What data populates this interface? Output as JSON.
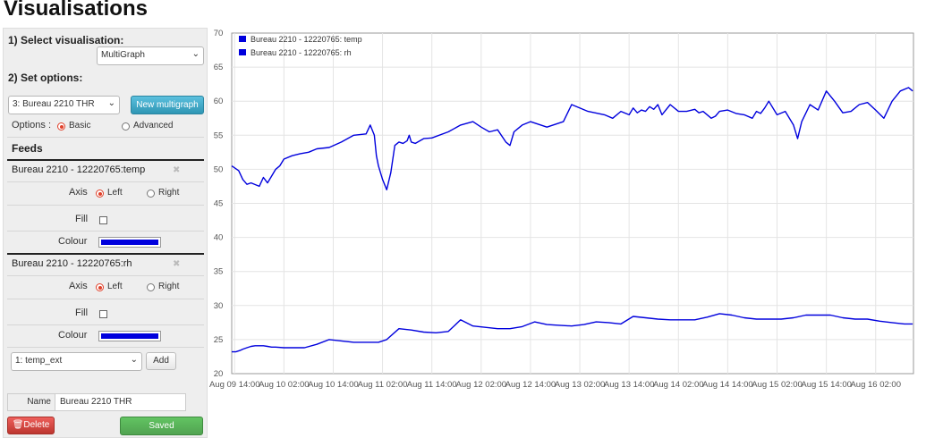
{
  "page": {
    "title": "Visualisations"
  },
  "sidebar": {
    "select_visualisation_label": "1) Select visualisation:",
    "visualisation_value": "MultiGraph",
    "set_options_label": "2) Set options:",
    "multigraph_value": "3: Bureau 2210 THR",
    "new_multigraph_label": "New multigraph",
    "options_label": "Options :",
    "options_basic_label": "Basic",
    "options_advanced_label": "Advanced",
    "options_selected": "Basic",
    "feeds_label": "Feeds",
    "feeds": [
      {
        "name": "Bureau 2210 - 12220765:temp",
        "axis_label": "Axis",
        "axis_left_label": "Left",
        "axis_right_label": "Right",
        "axis_selected": "Left",
        "fill_label": "Fill",
        "fill_checked": false,
        "colour_label": "Colour",
        "colour": "#0000dd"
      },
      {
        "name": "Bureau 2210 - 12220765:rh",
        "axis_label": "Axis",
        "axis_left_label": "Left",
        "axis_right_label": "Right",
        "axis_selected": "Left",
        "fill_label": "Fill",
        "fill_checked": false,
        "colour_label": "Colour",
        "colour": "#0000dd"
      }
    ],
    "add_feed_value": "1: temp_ext",
    "add_label": "Add",
    "name_label": "Name",
    "name_value": "Bureau 2210 THR",
    "delete_label": "Delete",
    "saved_label": "Saved"
  },
  "colors": {
    "series": "#0000dd",
    "delete": "#da4f49",
    "saved": "#5bb75b",
    "info": "#49afcd"
  },
  "chart_data": {
    "type": "line",
    "title": "",
    "xlabel": "",
    "ylabel": "",
    "ylim": [
      20,
      70
    ],
    "yticks": [
      20,
      25,
      30,
      35,
      40,
      45,
      50,
      55,
      60,
      65,
      70
    ],
    "x_ticks": [
      "Aug 09 14:00",
      "Aug 10 02:00",
      "Aug 10 14:00",
      "Aug 11 02:00",
      "Aug 11 14:00",
      "Aug 12 02:00",
      "Aug 12 14:00",
      "Aug 13 02:00",
      "Aug 13 14:00",
      "Aug 14 02:00",
      "Aug 14 14:00",
      "Aug 15 02:00",
      "Aug 15 14:00",
      "Aug 16 02:00"
    ],
    "x_unit": "hours since Aug 09 14:00",
    "grid": true,
    "legend_position": "top-left",
    "series": [
      {
        "name": "Bureau 2210 - 12220765: temp",
        "color": "#0000dd",
        "x": [
          -0.7,
          0.3,
          1.3,
          2,
          3,
          4,
          5,
          6,
          7,
          8,
          9,
          10,
          12,
          14,
          17,
          20,
          23,
          26,
          29,
          32,
          35,
          37,
          40,
          43,
          46,
          49,
          52,
          55,
          58,
          61,
          64,
          67,
          70,
          73,
          76,
          79,
          82,
          85,
          88,
          91,
          94,
          97,
          100,
          103,
          106,
          109,
          112,
          115,
          118,
          121,
          124,
          127,
          130,
          133,
          136,
          139,
          142,
          145,
          148,
          151,
          154,
          157,
          160,
          163,
          165
        ],
        "values": [
          23.2,
          23.2,
          23.4,
          23.6,
          23.8,
          24.0,
          24.1,
          24.1,
          24.1,
          24.0,
          23.9,
          23.9,
          23.8,
          23.8,
          23.8,
          24.3,
          25.0,
          24.8,
          24.6,
          24.6,
          24.6,
          25.0,
          26.6,
          26.4,
          26.1,
          26.0,
          26.2,
          27.9,
          27.0,
          26.8,
          26.6,
          26.6,
          26.9,
          27.6,
          27.2,
          27.1,
          27.0,
          27.2,
          27.6,
          27.5,
          27.3,
          28.4,
          28.2,
          28.0,
          27.9,
          27.9,
          27.9,
          28.3,
          28.8,
          28.6,
          28.2,
          28.0,
          28.0,
          28.0,
          28.2,
          28.6,
          28.6,
          28.6,
          28.2,
          28.0,
          28.0,
          27.7,
          27.5,
          27.3,
          27.3
        ]
      },
      {
        "name": "Bureau 2210 - 12220765: rh",
        "color": "#0000dd",
        "x": [
          -0.7,
          1,
          2,
          3,
          4,
          6,
          7,
          8,
          9,
          10,
          11,
          12,
          14,
          16,
          18,
          20,
          23,
          26,
          29,
          32,
          33,
          34,
          34.5,
          35,
          36,
          37,
          38,
          39,
          40,
          41,
          42,
          42.5,
          43,
          44,
          46,
          48,
          52,
          55,
          58,
          60,
          62,
          64,
          66,
          67,
          68,
          69,
          70,
          72,
          76,
          80,
          82,
          86,
          90,
          92,
          94,
          96,
          97,
          98,
          99,
          100,
          101,
          102,
          103,
          104,
          106,
          108,
          110,
          112,
          113,
          114,
          115,
          116,
          117,
          118,
          120,
          122,
          124,
          126,
          127,
          128,
          129,
          130,
          132,
          134,
          136,
          137,
          138,
          140,
          142,
          144,
          146,
          148,
          150,
          152,
          154,
          156,
          158,
          160,
          162,
          164,
          165
        ],
        "values": [
          50.5,
          49.8,
          48.5,
          47.8,
          48.0,
          47.5,
          48.8,
          48.0,
          49.0,
          50.0,
          50.5,
          51.5,
          52.0,
          52.3,
          52.5,
          53.0,
          53.2,
          54.0,
          55.0,
          55.2,
          56.5,
          55.0,
          52.0,
          50.5,
          48.5,
          47.0,
          49.5,
          53.5,
          54.0,
          53.8,
          54.2,
          55.0,
          54.0,
          53.8,
          54.5,
          54.6,
          55.5,
          56.5,
          57.0,
          56.2,
          55.5,
          55.8,
          54.0,
          53.5,
          55.5,
          56.0,
          56.5,
          57.0,
          56.2,
          57.0,
          59.5,
          58.5,
          58.0,
          57.5,
          58.5,
          58.0,
          59.0,
          58.3,
          58.7,
          58.5,
          59.2,
          58.8,
          59.5,
          58.0,
          59.5,
          58.5,
          58.5,
          58.8,
          58.3,
          58.5,
          58.0,
          57.5,
          57.8,
          58.5,
          58.7,
          58.2,
          58.0,
          57.5,
          58.5,
          58.2,
          59.0,
          60.0,
          58.0,
          58.5,
          56.5,
          54.5,
          57.0,
          59.5,
          58.7,
          61.5,
          60.0,
          58.3,
          58.5,
          59.5,
          59.8,
          58.7,
          57.5,
          60.0,
          61.5,
          62.0,
          61.5
        ]
      }
    ]
  }
}
